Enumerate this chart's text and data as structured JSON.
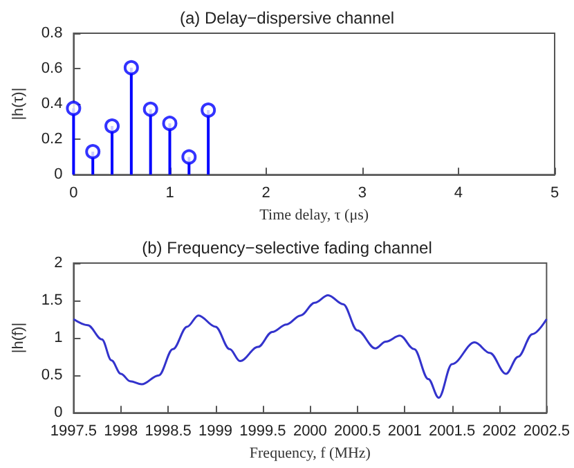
{
  "chart_data": [
    {
      "type": "lollipop",
      "title": "(a) Delay−dispersive channel",
      "xlabel": "Time delay, τ (μs)",
      "ylabel": "|h(τ)|",
      "x": [
        0,
        0.2,
        0.4,
        0.6,
        0.8,
        1,
        1.2,
        1.4
      ],
      "values": [
        0.375,
        0.13,
        0.275,
        0.605,
        0.37,
        0.29,
        0.1,
        0.365
      ],
      "color": "#0000ff",
      "marker": "circle",
      "xlim": [
        0,
        5
      ],
      "xticks": [
        0,
        1,
        2,
        3,
        4,
        5
      ],
      "ylim": [
        0,
        0.8
      ],
      "yticks": [
        0,
        0.2,
        0.4,
        0.6,
        0.8
      ]
    },
    {
      "type": "line",
      "title": "(b) Frequency−selective fading channel",
      "xlabel": "Frequency, f (MHz)",
      "ylabel": "|h(f)|",
      "color": "#3333cc",
      "x": [
        1997.5,
        1997.65,
        1997.8,
        1997.9,
        1998,
        1998.1,
        1998.22,
        1998.4,
        1998.55,
        1998.7,
        1998.82,
        1999,
        1999.15,
        1999.26,
        1999.45,
        1999.6,
        1999.75,
        1999.9,
        2000.05,
        2000.19,
        2000.35,
        2000.5,
        2000.69,
        2000.8,
        2000.95,
        2001.1,
        2001.25,
        2001.36,
        2001.5,
        2001.74,
        2001.9,
        2002.07,
        2002.2,
        2002.35,
        2002.5
      ],
      "values": [
        1.25,
        1.17,
        0.98,
        0.7,
        0.52,
        0.42,
        0.38,
        0.5,
        0.85,
        1.15,
        1.3,
        1.15,
        0.85,
        0.69,
        0.88,
        1.08,
        1.18,
        1.3,
        1.47,
        1.57,
        1.45,
        1.1,
        0.86,
        0.95,
        1.03,
        0.85,
        0.45,
        0.2,
        0.65,
        0.94,
        0.8,
        0.52,
        0.75,
        1.05,
        1.25
      ],
      "xlim": [
        1997.5,
        2002.5
      ],
      "xticks": [
        1997.5,
        1998,
        1998.5,
        1999,
        1999.5,
        2000,
        2000.5,
        2001,
        2001.5,
        2002,
        2002.5
      ],
      "ylim": [
        0,
        2
      ],
      "yticks": [
        0,
        0.5,
        1,
        1.5,
        2
      ]
    }
  ]
}
